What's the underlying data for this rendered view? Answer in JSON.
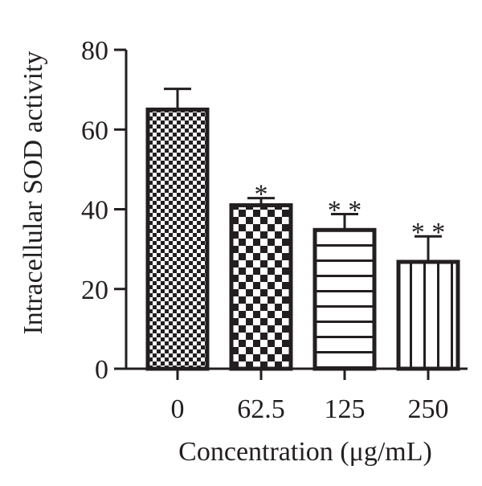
{
  "chart_data": {
    "type": "bar",
    "categories": [
      "0",
      "62.5",
      "125",
      "250"
    ],
    "values": [
      65,
      41,
      34.8,
      26.8
    ],
    "error": [
      5.2,
      1.8,
      4.0,
      6.4
    ],
    "significance": [
      "",
      "*",
      "* *",
      "* *"
    ],
    "patterns": [
      "fine-checker",
      "checker",
      "horizontal-lines",
      "vertical-lines"
    ],
    "xlabel": "Concentration (μg/mL)",
    "ylabel": "Intracellular SOD activity",
    "ylim": [
      0,
      80
    ],
    "yticks": [
      "0",
      "20",
      "40",
      "60",
      "80"
    ],
    "grid": false,
    "legend": "none",
    "colors": {
      "ink": "#231f20",
      "background": "#ffffff"
    }
  }
}
